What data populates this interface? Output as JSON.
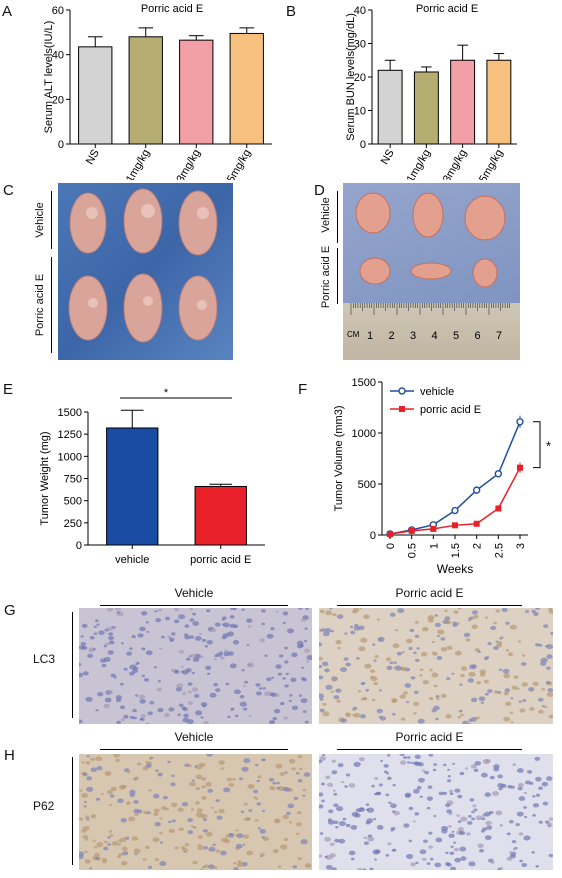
{
  "panel_labels": {
    "A": "A",
    "B": "B",
    "C": "C",
    "D": "D",
    "E": "E",
    "F": "F",
    "G": "G",
    "H": "H"
  },
  "photos": {
    "c": {
      "row1": "Vehicle",
      "row2": "Porric acid E"
    },
    "d": {
      "row1": "Vehicle",
      "row2": "Porric acid E",
      "ruler_unit": "CM",
      "ruler_ticks": [
        "1",
        "2",
        "3",
        "4",
        "5",
        "6",
        "7"
      ]
    },
    "g": {
      "stain": "LC3",
      "col1": "Vehicle",
      "col2": "Porric acid E"
    },
    "h": {
      "stain": "P62",
      "col1": "Vehicle",
      "col2": "Porric acid E"
    }
  },
  "colors": {
    "ns": "#d3d3d3",
    "mg1": "#b5ad72",
    "mg3": "#f2a0a6",
    "mg5": "#f7c07e",
    "vehicle_bar": "#1a4ca3",
    "porric_bar": "#e8202a",
    "vehicle_line": "#1f4e9c",
    "porric_line": "#e8202a",
    "tissue_blue": "#8a90c4",
    "tissue_tan": "#d9c8b0"
  },
  "chart_data": [
    {
      "id": "A",
      "type": "bar",
      "title": "Porric acid E",
      "xlabel": "",
      "ylabel": "Serum ALT levels(IU/L)",
      "categories": [
        "NS",
        "1mg/kg",
        "3mg/kg",
        "5mg/kg"
      ],
      "values": [
        43.5,
        48,
        46.5,
        49.5
      ],
      "errors": [
        4.5,
        4,
        2,
        2.5
      ],
      "ylim": [
        0,
        60
      ],
      "yticks": [
        "0",
        "20",
        "40",
        "60"
      ],
      "grid": false
    },
    {
      "id": "B",
      "type": "bar",
      "title": "Porric acid E",
      "xlabel": "",
      "ylabel": "Serum BUN levels(mg/dL)",
      "categories": [
        "NS",
        "1mg/kg",
        "3mg/kg",
        "5mg/kg"
      ],
      "values": [
        22,
        21.5,
        25,
        25
      ],
      "errors": [
        3,
        1.5,
        4.5,
        2
      ],
      "ylim": [
        0,
        40
      ],
      "yticks": [
        "0",
        "10",
        "20",
        "30",
        "40"
      ],
      "grid": false
    },
    {
      "id": "E",
      "type": "bar",
      "title": "",
      "xlabel": "",
      "ylabel": "Tumor Weight (mg)",
      "categories": [
        "vehicle",
        "porric acid E"
      ],
      "values": [
        1320,
        660
      ],
      "errors": [
        200,
        25
      ],
      "ylim": [
        0,
        1500
      ],
      "yticks": [
        "0",
        "250",
        "500",
        "750",
        "1000",
        "1250",
        "1500"
      ],
      "significance": "*",
      "grid": false
    },
    {
      "id": "F",
      "type": "line",
      "title": "",
      "xlabel": "Weeks",
      "ylabel": "Tumor Volume (mm3)",
      "x": [
        "0",
        "0.5",
        "1",
        "1.5",
        "2",
        "2.5",
        "3"
      ],
      "series": [
        {
          "name": "vehicle",
          "values": [
            10,
            50,
            100,
            240,
            440,
            600,
            1110
          ],
          "errors": [
            5,
            8,
            10,
            15,
            20,
            35,
            60
          ]
        },
        {
          "name": "porric acid E",
          "values": [
            10,
            40,
            60,
            95,
            110,
            260,
            660
          ],
          "errors": [
            5,
            6,
            8,
            10,
            12,
            20,
            50
          ]
        }
      ],
      "ylim": [
        0,
        1500
      ],
      "yticks": [
        "0",
        "500",
        "1000",
        "1500"
      ],
      "legend": "top-left",
      "significance": "*",
      "grid": false
    }
  ]
}
